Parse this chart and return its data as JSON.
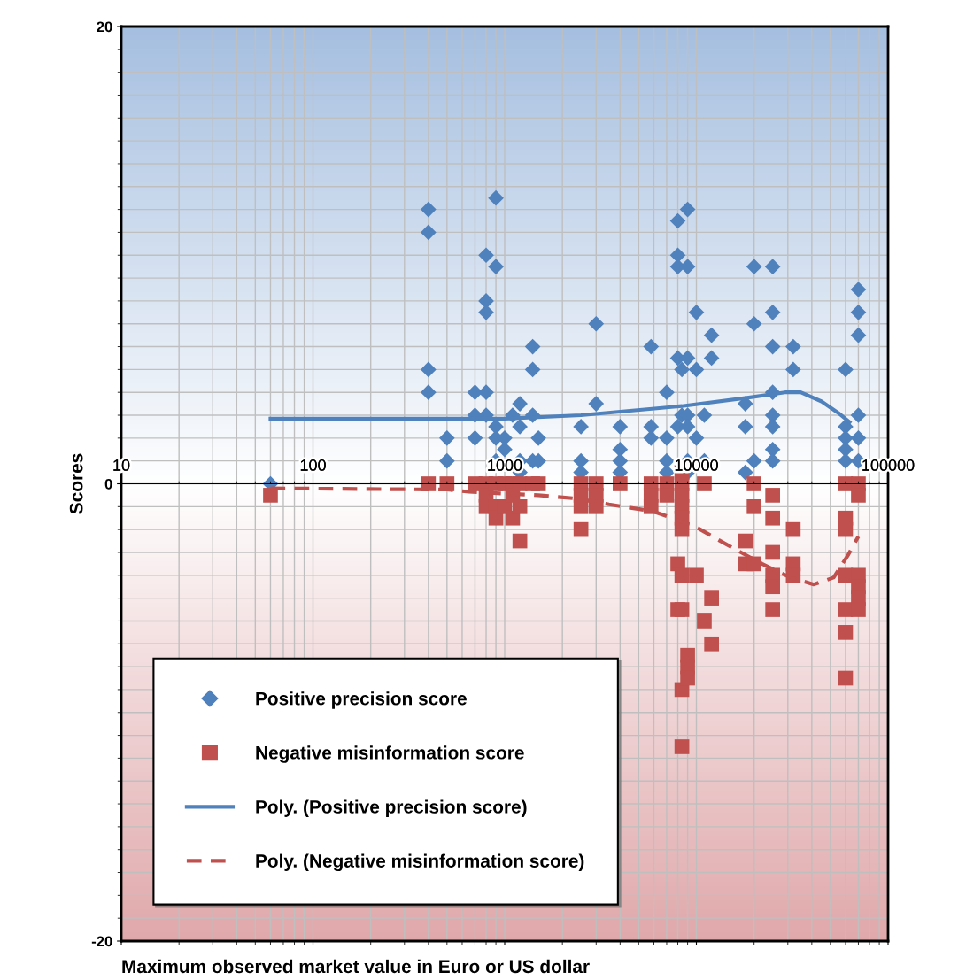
{
  "chart_data": {
    "type": "scatter",
    "xlabel": "Maximum observed market value in Euro or US dollar",
    "ylabel": "Scores",
    "log": "x",
    "grid": true,
    "legend": "bottom left",
    "xlim": [
      10,
      100000
    ],
    "xticks": [
      10,
      100,
      1000,
      10000,
      100000
    ],
    "ylim": [
      -20,
      20
    ],
    "yticks": [
      -20,
      0,
      20
    ],
    "series": [
      {
        "name": "Positive precision score",
        "marker": "diamond",
        "color": "#4f81bd",
        "x": [
          60,
          400,
          400,
          400,
          400,
          500,
          500,
          700,
          700,
          700,
          800,
          800,
          800,
          800,
          800,
          900,
          900,
          900,
          900,
          900,
          1000,
          1000,
          1100,
          1200,
          1200,
          1200,
          1200,
          1400,
          1400,
          1400,
          1400,
          1500,
          1500,
          2500,
          2500,
          2500,
          3000,
          3000,
          4000,
          4000,
          4000,
          4000,
          5800,
          5800,
          5800,
          7000,
          7000,
          7000,
          7000,
          8000,
          8000,
          8000,
          8000,
          8000,
          8400,
          8400,
          9000,
          9000,
          9000,
          9000,
          9000,
          9000,
          9000,
          10000,
          10000,
          10000,
          11000,
          11000,
          12000,
          12000,
          18000,
          18000,
          18000,
          20000,
          20000,
          20000,
          25000,
          25000,
          25000,
          25000,
          25000,
          25000,
          25000,
          25000,
          32000,
          32000,
          60000,
          60000,
          60000,
          60000,
          60000,
          70000,
          70000,
          70000,
          70000,
          70000,
          70000
        ],
        "values": [
          0,
          12,
          11,
          5,
          4,
          2,
          1,
          4,
          3,
          2,
          10,
          8,
          7.5,
          4,
          3,
          12.5,
          9.5,
          2.5,
          2,
          1,
          2,
          1.5,
          3,
          3.5,
          2.5,
          1,
          0.5,
          6,
          5,
          3,
          1,
          2,
          1,
          2.5,
          1,
          0.5,
          7,
          3.5,
          2.5,
          1.5,
          1,
          0.5,
          6,
          2.5,
          2,
          4,
          2,
          1,
          0.5,
          11.5,
          10,
          9.5,
          5.5,
          2.5,
          5,
          3,
          12,
          9.5,
          5.5,
          3,
          2.5,
          1,
          0.5,
          7.5,
          5,
          2,
          3,
          1,
          6.5,
          5.5,
          3.5,
          2.5,
          0.5,
          9.5,
          7,
          1,
          9.5,
          7.5,
          6,
          4,
          3,
          2.5,
          1.5,
          1,
          6,
          5,
          5,
          2.5,
          2,
          1.5,
          1,
          8.5,
          7.5,
          6.5,
          3,
          2,
          1
        ]
      },
      {
        "name": "Negative misinformation score",
        "marker": "square",
        "color": "#c0504d",
        "x": [
          60,
          400,
          500,
          700,
          800,
          800,
          800,
          900,
          900,
          900,
          1000,
          1000,
          1100,
          1100,
          1100,
          1200,
          1200,
          1200,
          1400,
          1500,
          2500,
          2500,
          2500,
          2500,
          3000,
          3000,
          3000,
          4000,
          5800,
          5800,
          5800,
          7000,
          7000,
          8000,
          8000,
          8400,
          8400,
          8400,
          8400,
          8400,
          8400,
          8400,
          8400,
          8400,
          8400,
          9000,
          9000,
          9000,
          10000,
          11000,
          11000,
          12000,
          12000,
          18000,
          18000,
          20000,
          20000,
          20000,
          25000,
          25000,
          25000,
          25000,
          25000,
          25000,
          32000,
          32000,
          32000,
          60000,
          60000,
          60000,
          60000,
          60000,
          60000,
          60000,
          70000,
          70000,
          70000,
          70000,
          70000,
          70000
        ],
        "values": [
          -0.5,
          0,
          0,
          0,
          0,
          -0.5,
          -1,
          0,
          -1,
          -1.5,
          0,
          -1,
          0,
          -0.5,
          -1.5,
          0,
          -1,
          -2.5,
          0,
          0,
          0,
          -0.5,
          -1,
          -2,
          0,
          -0.5,
          -1,
          0,
          0,
          -0.5,
          -1,
          0,
          -0.5,
          -3.5,
          -5.5,
          0.5,
          0,
          -0.5,
          -1,
          -1.5,
          -2,
          -4,
          -5.5,
          -9,
          -11.5,
          -7.5,
          -8,
          -8.5,
          -4,
          0,
          -6,
          -5,
          -7,
          -2.5,
          -3.5,
          0,
          -1,
          -3.5,
          -0.5,
          -1.5,
          -3,
          -4,
          -4.5,
          -5.5,
          -2,
          -3.5,
          -4,
          0,
          -1.5,
          -2,
          -4,
          -5.5,
          -6.5,
          -8.5,
          0,
          -0.5,
          -4,
          -4.5,
          -5,
          -5.5
        ]
      },
      {
        "name": "Poly. (Positive precision score)",
        "type": "line",
        "line_style": "solid",
        "marker": "none",
        "color": "#4f81bd",
        "x": [
          60,
          1000,
          2500,
          8400,
          18000,
          29000,
          35000,
          45000,
          55000,
          63000
        ],
        "values": [
          2.85,
          2.85,
          3.0,
          3.4,
          3.75,
          4.0,
          4.0,
          3.6,
          3.1,
          2.7
        ]
      },
      {
        "name": "Poly. (Negative misinformation score)",
        "type": "line",
        "line_style": "dashed",
        "marker": "none",
        "color": "#c0504d",
        "x": [
          60,
          500,
          650,
          1500,
          2400,
          3500,
          5900,
          7500,
          10000,
          14000,
          22000,
          31000,
          41000,
          52000,
          62000,
          70000
        ],
        "values": [
          -0.2,
          -0.25,
          -0.35,
          -0.5,
          -0.65,
          -0.9,
          -1.2,
          -1.5,
          -1.9,
          -2.6,
          -3.5,
          -4.1,
          -4.4,
          -4.1,
          -3.1,
          -2.3
        ]
      }
    ]
  }
}
